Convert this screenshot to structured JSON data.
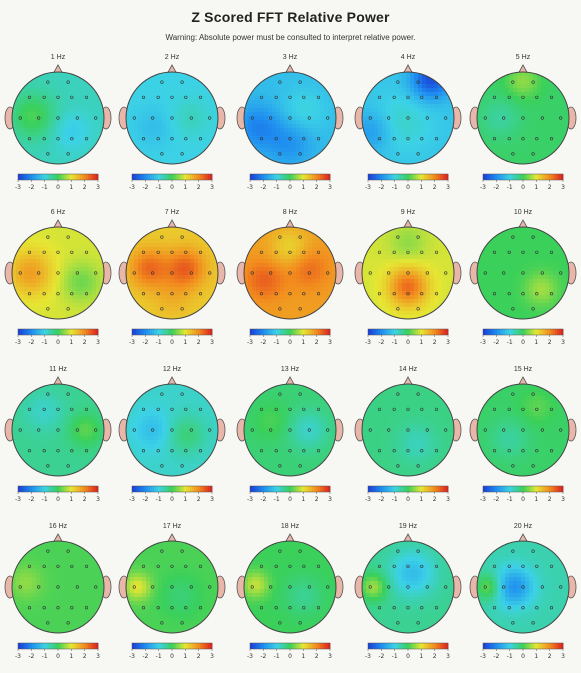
{
  "title": "Z Scored FFT Relative Power",
  "warning": "Warning:  Absolute power must be consulted to interpret relative power.",
  "colorbar_ticks": [
    "-3",
    "-2",
    "-1",
    "0",
    "1",
    "2",
    "3"
  ],
  "colorscale": [
    "#1a3cd6",
    "#1e8cf0",
    "#3cd2e6",
    "#3ad05a",
    "#e6e633",
    "#f28c1e",
    "#dc1e1e"
  ],
  "chart_data": {
    "type": "heatmap",
    "title": "Z Scored FFT Relative Power",
    "value_range": [
      -3,
      3
    ],
    "maps": [
      {
        "label": "1 Hz",
        "mean": -0.7,
        "blobs": [
          [
            -0.55,
            -0.05,
            0.35,
            0.8
          ],
          [
            0.3,
            0.3,
            0.3,
            -0.4
          ]
        ]
      },
      {
        "label": "2 Hz",
        "mean": -1.0,
        "blobs": [
          [
            -0.4,
            0.2,
            0.3,
            -0.3
          ],
          [
            0.4,
            0.0,
            0.3,
            0.3
          ]
        ]
      },
      {
        "label": "3 Hz",
        "mean": -1.3,
        "blobs": [
          [
            -0.7,
            0.2,
            0.35,
            -0.8
          ],
          [
            0.0,
            0.55,
            0.35,
            -0.6
          ],
          [
            0.3,
            -0.15,
            0.35,
            0.4
          ]
        ]
      },
      {
        "label": "4 Hz",
        "mean": -1.2,
        "blobs": [
          [
            0.5,
            -0.85,
            0.3,
            -1.6
          ],
          [
            -0.8,
            0.3,
            0.3,
            -0.6
          ],
          [
            -0.1,
            0.1,
            0.45,
            0.4
          ]
        ]
      },
      {
        "label": "5 Hz",
        "mean": -0.1,
        "blobs": [
          [
            0.0,
            -0.8,
            0.25,
            0.6
          ],
          [
            -0.5,
            0.0,
            0.3,
            -0.4
          ]
        ]
      },
      {
        "label": "6 Hz",
        "mean": 0.9,
        "blobs": [
          [
            -0.6,
            0.0,
            0.35,
            0.9
          ],
          [
            0.5,
            0.2,
            0.3,
            -0.6
          ]
        ]
      },
      {
        "label": "7 Hz",
        "mean": 1.3,
        "blobs": [
          [
            -0.5,
            -0.1,
            0.3,
            1.0
          ],
          [
            0.3,
            -0.1,
            0.3,
            1.1
          ],
          [
            0.0,
            0.5,
            0.3,
            0.3
          ]
        ]
      },
      {
        "label": "8 Hz",
        "mean": 1.8,
        "blobs": [
          [
            -0.55,
            0.15,
            0.3,
            0.6
          ],
          [
            0.4,
            -0.1,
            0.3,
            0.5
          ],
          [
            0.0,
            -0.55,
            0.3,
            -0.6
          ]
        ]
      },
      {
        "label": "9 Hz",
        "mean": 0.9,
        "blobs": [
          [
            0.0,
            0.3,
            0.3,
            1.4
          ],
          [
            0.0,
            -0.65,
            0.3,
            -0.4
          ]
        ]
      },
      {
        "label": "10 Hz",
        "mean": 0.0,
        "blobs": [
          [
            0.4,
            0.35,
            0.25,
            0.6
          ]
        ]
      },
      {
        "label": "11 Hz",
        "mean": -0.4,
        "blobs": [
          [
            0.6,
            0.0,
            0.25,
            0.6
          ],
          [
            -0.3,
            -0.4,
            0.3,
            -0.4
          ]
        ]
      },
      {
        "label": "12 Hz",
        "mean": -0.8,
        "blobs": [
          [
            -0.4,
            0.0,
            0.3,
            -0.5
          ],
          [
            0.3,
            0.1,
            0.3,
            0.6
          ]
        ]
      },
      {
        "label": "13 Hz",
        "mean": -0.2,
        "blobs": [
          [
            0.4,
            0.0,
            0.3,
            -0.6
          ],
          [
            -0.4,
            -0.2,
            0.3,
            0.3
          ]
        ]
      },
      {
        "label": "14 Hz",
        "mean": -0.3,
        "blobs": [
          [
            0.2,
            0.3,
            0.3,
            -0.4
          ]
        ]
      },
      {
        "label": "15 Hz",
        "mean": -0.1,
        "blobs": [
          [
            -0.3,
            0.2,
            0.3,
            -0.4
          ],
          [
            0.3,
            -0.5,
            0.25,
            0.3
          ]
        ]
      },
      {
        "label": "16 Hz",
        "mean": 0.1,
        "blobs": [
          [
            -0.7,
            -0.1,
            0.25,
            0.4
          ]
        ]
      },
      {
        "label": "17 Hz",
        "mean": 0.1,
        "blobs": [
          [
            -0.75,
            0.0,
            0.2,
            0.9
          ],
          [
            0.2,
            0.2,
            0.3,
            -0.3
          ]
        ]
      },
      {
        "label": "18 Hz",
        "mean": 0.0,
        "blobs": [
          [
            -0.75,
            -0.05,
            0.2,
            0.8
          ],
          [
            0.3,
            0.2,
            0.3,
            -0.4
          ]
        ]
      },
      {
        "label": "19 Hz",
        "mean": -0.4,
        "blobs": [
          [
            -0.75,
            0.0,
            0.2,
            1.0
          ],
          [
            0.1,
            -0.3,
            0.35,
            -0.9
          ]
        ]
      },
      {
        "label": "20 Hz",
        "mean": -0.6,
        "blobs": [
          [
            -0.75,
            0.0,
            0.2,
            1.0
          ],
          [
            -0.2,
            0.0,
            0.3,
            -1.3
          ]
        ]
      }
    ]
  }
}
